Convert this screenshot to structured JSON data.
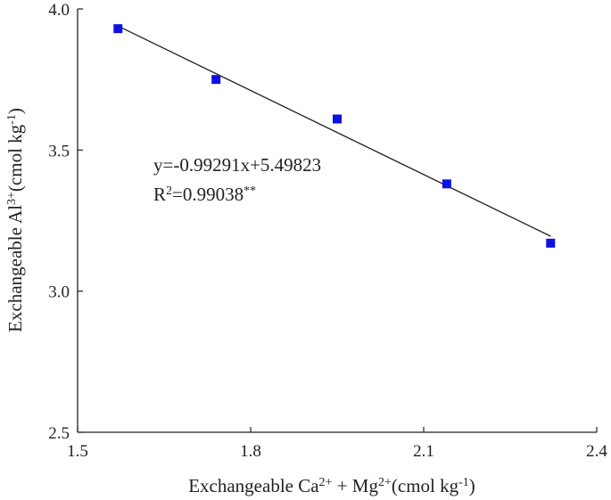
{
  "chart_data": {
    "type": "scatter",
    "xlabel": {
      "parts": [
        {
          "t": "Exchangeable Ca"
        },
        {
          "t": "2+",
          "sup": true
        },
        {
          "t": " + Mg"
        },
        {
          "t": "2+",
          "sup": true
        },
        {
          "t": "(cmol kg"
        },
        {
          "t": "-1",
          "sup": true
        },
        {
          "t": ")"
        }
      ]
    },
    "ylabel": {
      "parts": [
        {
          "t": "Exchangeable Al"
        },
        {
          "t": "3+",
          "sup": true
        },
        {
          "t": "(cmol kg"
        },
        {
          "t": "-1",
          "sup": true
        },
        {
          "t": ")"
        }
      ]
    },
    "xlim": [
      1.5,
      2.4
    ],
    "ylim": [
      2.5,
      4.0
    ],
    "xticks": [
      "1.5",
      "1.8",
      "2.1",
      "2.4"
    ],
    "yticks": [
      "2.5",
      "3.0",
      "3.5",
      "4.0"
    ],
    "points": [
      {
        "x": 1.57,
        "y": 3.93
      },
      {
        "x": 1.74,
        "y": 3.75
      },
      {
        "x": 1.95,
        "y": 3.61
      },
      {
        "x": 2.14,
        "y": 3.38
      },
      {
        "x": 2.32,
        "y": 3.17
      }
    ],
    "fit": {
      "slope": -0.99291,
      "intercept": 5.49823,
      "x_start": 1.57,
      "x_end": 2.32
    },
    "equation_lines": [
      {
        "parts": [
          {
            "t": "y=-0.99291x+5.49823"
          }
        ]
      },
      {
        "parts": [
          {
            "t": "R"
          },
          {
            "t": "2",
            "sup": true
          },
          {
            "t": "=0.99038"
          },
          {
            "t": "**",
            "sup": true
          }
        ]
      }
    ],
    "marker_color": "#1010e6",
    "line_color": "#222222",
    "grid": false
  }
}
